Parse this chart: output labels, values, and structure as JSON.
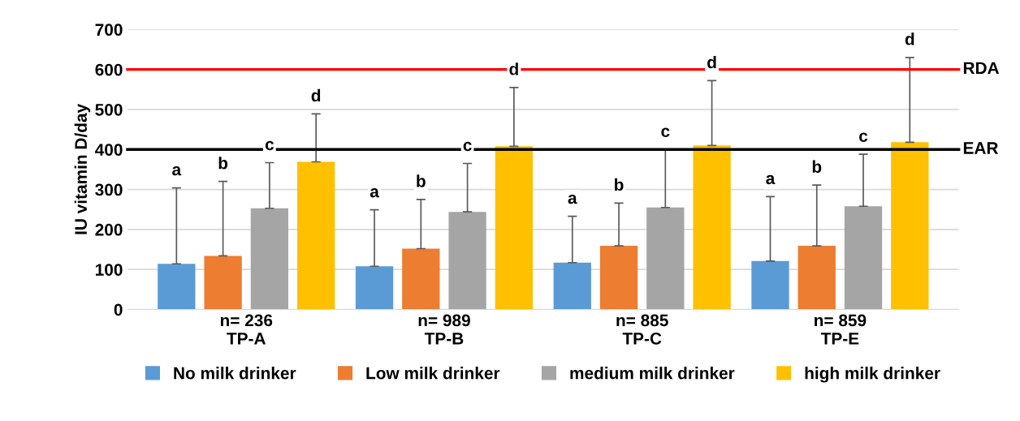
{
  "chart_data": {
    "type": "bar",
    "ylabel": "IU vitamin D/day",
    "categories": [
      "n= 236\nTP-A",
      "n= 989\nTP-B",
      "n= 885\nTP-C",
      "n= 859\nTP-E"
    ],
    "series": [
      {
        "name": "No milk drinker",
        "color": "#5b9bd5",
        "values": [
          114,
          108,
          117,
          121
        ],
        "errors": [
          [
            114,
            304
          ],
          [
            108,
            249
          ],
          [
            117,
            233
          ],
          [
            121,
            282
          ]
        ]
      },
      {
        "name": "Low milk drinker",
        "color": "#ed7d31",
        "values": [
          134,
          152,
          159,
          159
        ],
        "errors": [
          [
            134,
            320
          ],
          [
            152,
            275
          ],
          [
            159,
            266
          ],
          [
            159,
            311
          ]
        ]
      },
      {
        "name": "medium milk drinker",
        "color": "#a5a5a5",
        "values": [
          253,
          244,
          255,
          258
        ],
        "errors": [
          [
            253,
            367
          ],
          [
            244,
            365
          ],
          [
            255,
            400
          ],
          [
            258,
            388
          ]
        ]
      },
      {
        "name": "high milk drinker",
        "color": "#ffc000",
        "values": [
          369,
          408,
          410,
          418
        ],
        "errors": [
          [
            369,
            489
          ],
          [
            408,
            555
          ],
          [
            410,
            572
          ],
          [
            418,
            630
          ]
        ]
      }
    ],
    "ylim": [
      0,
      700
    ],
    "yticks": [
      0,
      100,
      200,
      300,
      400,
      500,
      600,
      700
    ],
    "grid": "y",
    "legend": "bottom",
    "ref_lines": [
      {
        "axis": "y",
        "value": 600,
        "label": "RDA",
        "color": "#ff0000"
      },
      {
        "axis": "y",
        "value": 400,
        "label": "EAR",
        "color": "#000000"
      }
    ],
    "annotations": [
      "a",
      "b",
      "c",
      "d",
      "a",
      "b",
      "c",
      "d",
      "a",
      "b",
      "c",
      "d",
      "a",
      "b",
      "c",
      "d"
    ]
  }
}
